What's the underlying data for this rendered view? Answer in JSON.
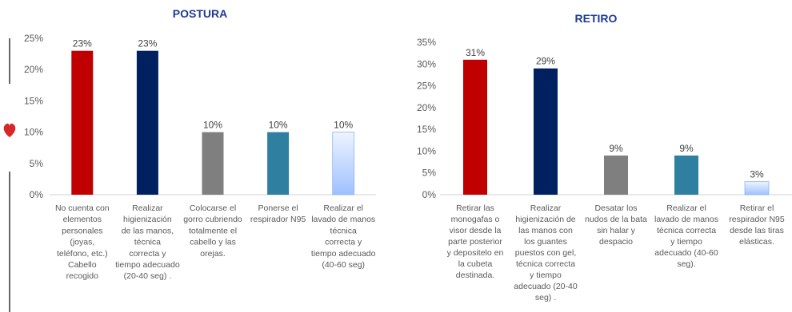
{
  "chart_data": [
    {
      "type": "bar",
      "title": "POSTURA",
      "categories": [
        "No cuenta con elementos personales (joyas, teléfono, etc.) Cabello recogido",
        "Realizar higienización de las manos, técnica correcta y tiempo adecuado (20-40 seg) .",
        "Colocarse el gorro cubriendo totalmente el cabello y las orejas.",
        "Ponerse el respirador N95",
        "Realizar el lavado de manos técnica correcta y tiempo adecuado (40-60 seg)"
      ],
      "values": [
        23,
        23,
        10,
        10,
        10
      ],
      "data_labels": [
        "23%",
        "23%",
        "10%",
        "10%",
        "10%"
      ],
      "bar_colors": [
        "#c00000",
        "#002060",
        "#7f7f7f",
        "#2e7fa0",
        "#bdd7ff"
      ],
      "ylim": [
        0,
        25
      ],
      "yticks": [
        "0%",
        "5%",
        "10%",
        "15%",
        "20%",
        "25%"
      ],
      "grid": false,
      "legend": "none"
    },
    {
      "type": "bar",
      "title": "RETIRO",
      "categories": [
        "Retirar las monogafas o visor desde la parte posterior y depositelo en la cubeta destinada.",
        "Realizar higienización de las manos con los guantes puestos con gel, técnica correcta y tiempo adecuado (20-40 seg) .",
        "Desatar los nudos de la bata sin halar y despacio",
        "Realizar el lavado de manos técnica correcta y tiempo adecuado (40-60 seg).",
        "Retirar el respirador N95 desde las tiras elásticas."
      ],
      "values": [
        31,
        29,
        9,
        9,
        3
      ],
      "data_labels": [
        "31%",
        "29%",
        "9%",
        "9%",
        "3%"
      ],
      "bar_colors": [
        "#c00000",
        "#002060",
        "#7f7f7f",
        "#2e7fa0",
        "#bdd7ff"
      ],
      "ylim": [
        0,
        35
      ],
      "yticks": [
        "0%",
        "5%",
        "10%",
        "15%",
        "20%",
        "25%",
        "30%",
        "35%"
      ],
      "grid": false,
      "legend": "none"
    }
  ],
  "decor": {
    "heart_color": "#d62828",
    "heart_icon": "heart-icon"
  }
}
